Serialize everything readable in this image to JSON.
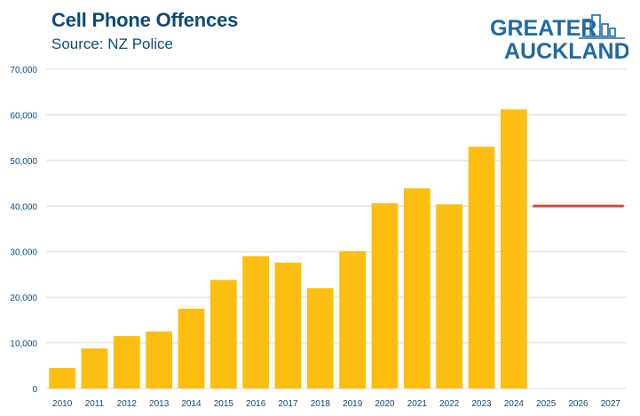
{
  "header": {
    "title": "Cell Phone Offences",
    "subtitle": "Source: NZ Police",
    "logo_line1": "GREATER",
    "logo_line2": "AUCKLAND"
  },
  "colors": {
    "bar": "#FDBE12",
    "target_line": "#D94A3A",
    "text": "#0e4a74",
    "grid": "#d9d9d9"
  },
  "chart_data": {
    "type": "bar",
    "categories": [
      "2010",
      "2011",
      "2012",
      "2013",
      "2014",
      "2015",
      "2016",
      "2017",
      "2018",
      "2019",
      "2020",
      "2021",
      "2022",
      "2023",
      "2024",
      "2025",
      "2026",
      "2027"
    ],
    "values": [
      4500,
      8800,
      11500,
      12500,
      17500,
      23800,
      29000,
      27600,
      22000,
      30100,
      40600,
      43900,
      40400,
      53000,
      61200,
      null,
      null,
      null
    ],
    "reference_line": {
      "value": 40000,
      "from": "2025",
      "to": "2027"
    },
    "title": "Cell Phone Offences",
    "subtitle": "Source: NZ Police",
    "xlabel": "",
    "ylabel": "",
    "ylim": [
      0,
      70000
    ],
    "yticks": [
      0,
      10000,
      20000,
      30000,
      40000,
      50000,
      60000,
      70000
    ],
    "ytick_labels": [
      "0",
      "10,000",
      "20,000",
      "30,000",
      "40,000",
      "50,000",
      "60,000",
      "70,000"
    ],
    "grid": true,
    "legend": "none"
  }
}
